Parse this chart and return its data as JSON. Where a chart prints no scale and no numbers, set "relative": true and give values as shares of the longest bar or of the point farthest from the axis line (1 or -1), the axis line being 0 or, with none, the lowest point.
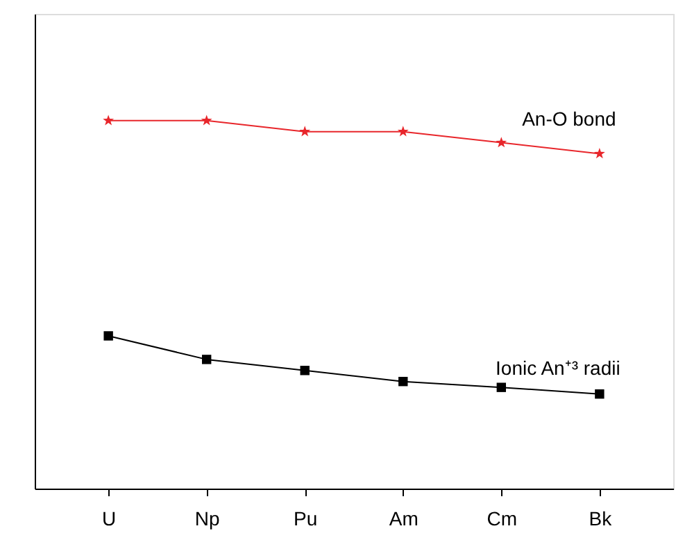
{
  "chart_data": {
    "type": "line",
    "relative": true,
    "categories": [
      "U",
      "Np",
      "Pu",
      "Am",
      "Cm",
      "Bk"
    ],
    "series": [
      {
        "name": "An-O bond",
        "color": "#e8262b",
        "marker": "star",
        "values": [
          1,
          1,
          0.97,
          0.97,
          0.94,
          0.91
        ]
      },
      {
        "name": "Ionic An⁺³ radii",
        "color": "#000000",
        "marker": "square",
        "values": [
          0.415,
          0.351,
          0.321,
          0.291,
          0.275,
          0.257
        ]
      }
    ]
  }
}
